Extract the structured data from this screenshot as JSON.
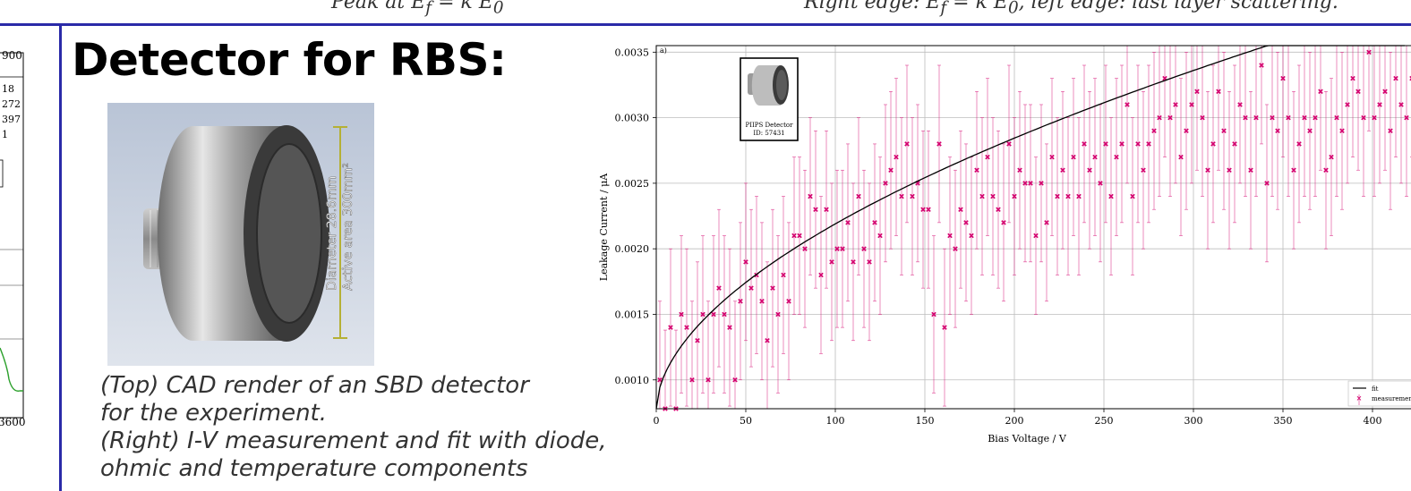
{
  "top_strip": {
    "left_text": "Peak at E",
    "left_sub": "f",
    "left_tail": " = k E",
    "left_sub2": "0",
    "right_text": "Right edge: E",
    "right_sub": "f",
    "right_mid": " = k E",
    "right_sub2": "0",
    "right_tail": ", left edge: last layer scattering."
  },
  "left_chart": {
    "tick_top": "900",
    "tick_bottom": "3600",
    "legend_values": [
      "18",
      "272",
      "397",
      "1"
    ]
  },
  "slide": {
    "title": "Detector for RBS:",
    "caption_lines": [
      "(Top) CAD render of an SBD detector",
      "for the experiment.",
      "(Right) I-V measurement and fit with diode,",
      "ohmic and temperature components"
    ]
  },
  "cad_render": {
    "dimension_label_1": "Diameter 28.6mm",
    "dimension_label_2": "Active area 300mm²"
  },
  "colors": {
    "accent_rule": "#2a2aa8",
    "measurement": "#d4006e",
    "fit": "#000000",
    "left_series": "#2ca02c"
  },
  "chart_data": {
    "type": "scatter",
    "panel_label": "a)",
    "xlabel": "Bias Voltage / V",
    "ylabel": "Leakage Current / μA",
    "xlim": [
      0,
      425
    ],
    "ylim": [
      0.00078,
      0.00355
    ],
    "xticks": [
      0,
      50,
      100,
      150,
      200,
      250,
      300,
      350,
      400
    ],
    "yticks": [
      0.001,
      0.0015,
      0.002,
      0.0025,
      0.003,
      0.0035
    ],
    "grid": true,
    "legend_position": "bottom-right",
    "legend": [
      "fit",
      "measurement"
    ],
    "inset_label_1": "PIIPS Detector",
    "inset_label_2": "ID: 57431",
    "error_bar": 0.0006,
    "fit": {
      "y0": 0.00078,
      "a": 0.000112,
      "power": 0.55
    },
    "series": [
      {
        "name": "measurement",
        "x": [
          2,
          5,
          8,
          11,
          14,
          17,
          20,
          23,
          26,
          29,
          32,
          35,
          38,
          41,
          44,
          47,
          50,
          53,
          56,
          59,
          62,
          65,
          68,
          71,
          74,
          77,
          80,
          83,
          86,
          89,
          92,
          95,
          98,
          101,
          104,
          107,
          110,
          113,
          116,
          119,
          122,
          125,
          128,
          131,
          134,
          137,
          140,
          143,
          146,
          149,
          152,
          155,
          158,
          161,
          164,
          167,
          170,
          173,
          176,
          179,
          182,
          185,
          188,
          191,
          194,
          197,
          200,
          203,
          206,
          209,
          212,
          215,
          218,
          221,
          224,
          227,
          230,
          233,
          236,
          239,
          242,
          245,
          248,
          251,
          254,
          257,
          260,
          263,
          266,
          269,
          272,
          275,
          278,
          281,
          284,
          287,
          290,
          293,
          296,
          299,
          302,
          305,
          308,
          311,
          314,
          317,
          320,
          323,
          326,
          329,
          332,
          335,
          338,
          341,
          344,
          347,
          350,
          353,
          356,
          359,
          362,
          365,
          368,
          371,
          374,
          377,
          380,
          383,
          386,
          389,
          392,
          395,
          398,
          401,
          404,
          407,
          410,
          413,
          416,
          419,
          422
        ],
        "y": [
          0.001,
          0.00078,
          0.0014,
          0.00078,
          0.0015,
          0.0014,
          0.001,
          0.0013,
          0.0015,
          0.001,
          0.0015,
          0.0017,
          0.0015,
          0.0014,
          0.001,
          0.0016,
          0.0019,
          0.0017,
          0.0018,
          0.0016,
          0.0013,
          0.0017,
          0.0015,
          0.0018,
          0.0016,
          0.0021,
          0.0021,
          0.002,
          0.0024,
          0.0023,
          0.0018,
          0.0023,
          0.0019,
          0.002,
          0.002,
          0.0022,
          0.0019,
          0.0024,
          0.002,
          0.0019,
          0.0022,
          0.0021,
          0.0025,
          0.0026,
          0.0027,
          0.0024,
          0.0028,
          0.0024,
          0.0025,
          0.0023,
          0.0023,
          0.0015,
          0.0028,
          0.0014,
          0.0021,
          0.002,
          0.0023,
          0.0022,
          0.0021,
          0.0026,
          0.0024,
          0.0027,
          0.0024,
          0.0023,
          0.0022,
          0.0028,
          0.0024,
          0.0026,
          0.0025,
          0.0025,
          0.0021,
          0.0025,
          0.0022,
          0.0027,
          0.0024,
          0.0026,
          0.0024,
          0.0027,
          0.0024,
          0.0028,
          0.0026,
          0.0027,
          0.0025,
          0.0028,
          0.0024,
          0.0027,
          0.0028,
          0.0031,
          0.0024,
          0.0028,
          0.0026,
          0.0028,
          0.0029,
          0.003,
          0.0033,
          0.003,
          0.0031,
          0.0027,
          0.0029,
          0.0031,
          0.0032,
          0.003,
          0.0026,
          0.0028,
          0.0032,
          0.0029,
          0.0026,
          0.0028,
          0.0031,
          0.003,
          0.0026,
          0.003,
          0.0034,
          0.0025,
          0.003,
          0.0029,
          0.0033,
          0.003,
          0.0026,
          0.0028,
          0.003,
          0.0029,
          0.003,
          0.0032,
          0.0026,
          0.0027,
          0.003,
          0.0029,
          0.0031,
          0.0033,
          0.0032,
          0.003,
          0.0035,
          0.003,
          0.0031,
          0.0032,
          0.0029,
          0.0033,
          0.0031,
          0.003,
          0.0033
        ]
      }
    ]
  }
}
